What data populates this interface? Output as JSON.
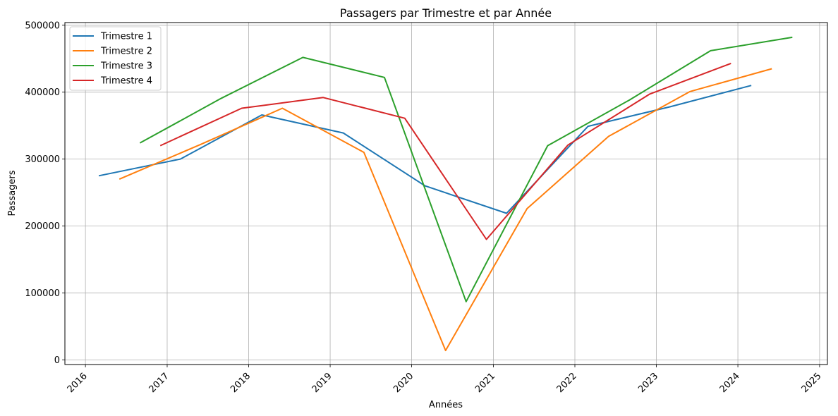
{
  "chart_data": {
    "type": "line",
    "title": "Passagers par Trimestre et par Année",
    "xlabel": "Années",
    "ylabel": "Passagers",
    "x_ticks": [
      "2016",
      "2017",
      "2018",
      "2019",
      "2020",
      "2021",
      "2022",
      "2023",
      "2024",
      "2025"
    ],
    "y_ticks": [
      "0",
      "100000",
      "200000",
      "300000",
      "400000",
      "500000"
    ],
    "xlim": [
      "2015-10-01",
      "2025-02-05"
    ],
    "ylim": [
      -7000,
      504000
    ],
    "grid": true,
    "legend_position": "upper-left",
    "series": [
      {
        "name": "Trimestre 1",
        "color": "#1f77b4",
        "points": [
          [
            "2016-03-01",
            275000
          ],
          [
            "2017-03-01",
            300000
          ],
          [
            "2018-03-01",
            366000
          ],
          [
            "2019-03-01",
            339000
          ],
          [
            "2020-03-01",
            260000
          ],
          [
            "2021-03-01",
            219000
          ],
          [
            "2022-03-01",
            349000
          ],
          [
            "2023-03-01",
            378000
          ],
          [
            "2024-03-01",
            410000
          ]
        ]
      },
      {
        "name": "Trimestre 2",
        "color": "#ff7f0e",
        "points": [
          [
            "2016-06-01",
            270000
          ],
          [
            "2017-06-01",
            322000
          ],
          [
            "2018-06-01",
            376000
          ],
          [
            "2019-06-01",
            310000
          ],
          [
            "2020-06-01",
            14000
          ],
          [
            "2021-06-01",
            226000
          ],
          [
            "2022-06-01",
            334000
          ],
          [
            "2023-06-01",
            401000
          ],
          [
            "2024-06-01",
            435000
          ]
        ]
      },
      {
        "name": "Trimestre 3",
        "color": "#2ca02c",
        "points": [
          [
            "2016-09-01",
            324000
          ],
          [
            "2017-09-01",
            391000
          ],
          [
            "2018-09-01",
            452000
          ],
          [
            "2019-09-01",
            422000
          ],
          [
            "2020-09-01",
            87000
          ],
          [
            "2021-09-01",
            320000
          ],
          [
            "2022-09-01",
            388000
          ],
          [
            "2023-09-01",
            462000
          ],
          [
            "2024-09-01",
            482000
          ]
        ]
      },
      {
        "name": "Trimestre 4",
        "color": "#d62728",
        "points": [
          [
            "2016-12-01",
            320000
          ],
          [
            "2017-12-01",
            376000
          ],
          [
            "2018-12-01",
            392000
          ],
          [
            "2019-12-01",
            361000
          ],
          [
            "2020-12-01",
            180000
          ],
          [
            "2021-12-01",
            321000
          ],
          [
            "2022-12-01",
            397000
          ],
          [
            "2023-12-01",
            443000
          ]
        ]
      }
    ]
  }
}
